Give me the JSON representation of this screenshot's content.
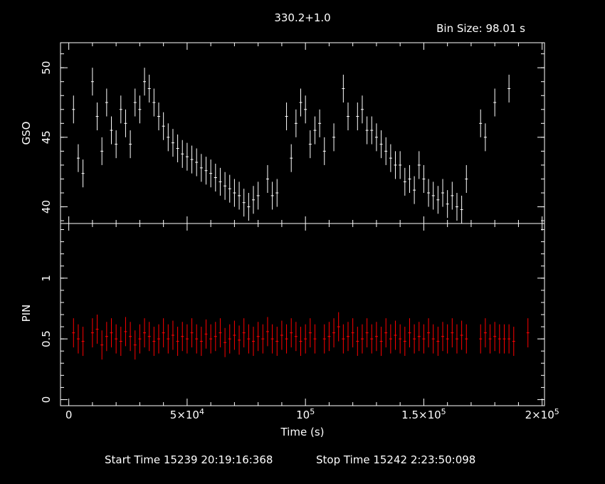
{
  "title": "330.2+1.0",
  "bin_size_label": "Bin Size: 98.01 s",
  "footer": {
    "start": "Start Time 15239 20:19:16:368",
    "stop": "Stop Time 15242  2:23:50:098"
  },
  "colors": {
    "background": "#000000",
    "axes": "#ffffff",
    "gso": "#ffffff",
    "pin": "#ff0000"
  },
  "chart_data": [
    {
      "type": "line",
      "ylabel": "GSO",
      "ylim": [
        38.8,
        51.8
      ],
      "xlim": [
        -3500,
        201000
      ],
      "y_ticks": [
        {
          "v": 40,
          "label": "40"
        },
        {
          "v": 45,
          "label": "45"
        },
        {
          "v": 50,
          "label": "50"
        }
      ],
      "series": [
        {
          "x": [
            2000,
            4000,
            6000,
            8000,
            10000,
            12000,
            14000,
            16000,
            18000,
            20000,
            22000,
            24000,
            26000,
            28000,
            30000,
            32000,
            34000,
            36000,
            38000,
            40000,
            42000,
            44000,
            46000,
            48000,
            50000,
            52000,
            54000,
            56000,
            58000,
            60000,
            62000,
            64000,
            66000,
            68000,
            70000,
            72000,
            74000,
            76000,
            78000,
            80000,
            82000,
            84000,
            86000,
            88000,
            90000,
            92000,
            94000,
            96000,
            98000,
            100000,
            102000,
            104000,
            106000,
            108000,
            110000,
            112000,
            114000,
            116000,
            118000,
            120000,
            122000,
            124000,
            126000,
            128000,
            130000,
            132000,
            134000,
            136000,
            138000,
            140000,
            142000,
            144000,
            146000,
            148000,
            150000,
            152000,
            154000,
            156000,
            158000,
            160000,
            162000,
            164000,
            166000,
            168000,
            170000,
            172000,
            174000,
            176000,
            178000,
            180000,
            182000,
            184000,
            186000
          ],
          "y": [
            47.0,
            43.5,
            42.4,
            null,
            49.0,
            46.5,
            44.0,
            47.5,
            45.5,
            44.5,
            47.0,
            46.0,
            44.5,
            47.5,
            47.0,
            49.0,
            48.5,
            47.5,
            46.5,
            45.8,
            45.0,
            44.6,
            44.2,
            43.8,
            43.6,
            43.4,
            43.2,
            42.8,
            42.6,
            42.4,
            42.1,
            41.8,
            41.5,
            41.3,
            41.0,
            40.8,
            40.3,
            40.0,
            40.5,
            40.8,
            null,
            42.0,
            40.8,
            41.0,
            null,
            46.5,
            43.5,
            46.0,
            47.5,
            47.0,
            44.5,
            45.5,
            46.0,
            44.0,
            null,
            45.0,
            null,
            48.5,
            46.5,
            null,
            46.5,
            47.0,
            45.5,
            45.5,
            45.0,
            44.5,
            44.0,
            43.5,
            43.0,
            43.0,
            41.8,
            42.0,
            41.2,
            43.0,
            42.0,
            41.0,
            40.8,
            40.5,
            41.0,
            40.2,
            40.8,
            40.0,
            39.8,
            42.0,
            null,
            null,
            46.0,
            45.0,
            null,
            47.5,
            null,
            null,
            48.5
          ]
        }
      ]
    },
    {
      "type": "line",
      "ylabel": "PIN",
      "ylim": [
        -0.05,
        1.45
      ],
      "xlim": [
        -3500,
        201000
      ],
      "y_ticks": [
        {
          "v": 0,
          "label": "0"
        },
        {
          "v": 0.5,
          "label": "0.5"
        },
        {
          "v": 1,
          "label": "1"
        }
      ],
      "x_ticks": [
        {
          "v": 0,
          "label": "0",
          "sup": ""
        },
        {
          "v": 50000,
          "label": "5×10",
          "sup": "4"
        },
        {
          "v": 100000,
          "label": "10",
          "sup": "5"
        },
        {
          "v": 150000,
          "label": "1.5×10",
          "sup": "5"
        },
        {
          "v": 200000,
          "label": "2×10",
          "sup": "5"
        }
      ],
      "xlabel": "Time (s)",
      "series": [
        {
          "x": [
            2000,
            4000,
            6000,
            8000,
            10000,
            12000,
            14000,
            16000,
            18000,
            20000,
            22000,
            24000,
            26000,
            28000,
            30000,
            32000,
            34000,
            36000,
            38000,
            40000,
            42000,
            44000,
            46000,
            48000,
            50000,
            52000,
            54000,
            56000,
            58000,
            60000,
            62000,
            64000,
            66000,
            68000,
            70000,
            72000,
            74000,
            76000,
            78000,
            80000,
            82000,
            84000,
            86000,
            88000,
            90000,
            92000,
            94000,
            96000,
            98000,
            100000,
            102000,
            104000,
            106000,
            108000,
            110000,
            112000,
            114000,
            116000,
            118000,
            120000,
            122000,
            124000,
            126000,
            128000,
            130000,
            132000,
            134000,
            136000,
            138000,
            140000,
            142000,
            144000,
            146000,
            148000,
            150000,
            152000,
            154000,
            156000,
            158000,
            160000,
            162000,
            164000,
            166000,
            168000,
            170000,
            172000,
            174000,
            176000,
            178000,
            180000,
            182000,
            184000,
            186000,
            188000,
            190000,
            192000,
            194000
          ],
          "y": [
            0.55,
            0.5,
            0.48,
            null,
            0.55,
            0.58,
            0.45,
            0.52,
            0.55,
            0.5,
            0.48,
            0.56,
            0.52,
            0.45,
            0.5,
            0.55,
            0.52,
            0.48,
            0.5,
            0.55,
            0.5,
            0.53,
            0.48,
            0.52,
            0.5,
            0.55,
            0.5,
            0.48,
            0.54,
            0.5,
            0.52,
            0.55,
            0.47,
            0.5,
            0.53,
            0.49,
            0.55,
            0.5,
            0.48,
            0.52,
            0.5,
            0.56,
            0.5,
            0.48,
            0.53,
            0.5,
            0.55,
            0.52,
            0.48,
            0.5,
            0.55,
            0.5,
            null,
            0.5,
            0.52,
            0.55,
            0.6,
            0.5,
            0.52,
            0.55,
            0.48,
            0.5,
            0.55,
            0.5,
            0.52,
            0.48,
            0.55,
            0.5,
            0.53,
            0.5,
            0.48,
            0.55,
            0.5,
            0.52,
            0.5,
            0.55,
            0.5,
            0.48,
            0.52,
            0.5,
            0.55,
            0.5,
            0.53,
            0.5,
            null,
            null,
            0.5,
            0.55,
            0.5,
            0.52,
            0.5,
            0.5,
            0.5,
            0.48,
            null,
            null,
            0.55
          ]
        }
      ]
    }
  ]
}
